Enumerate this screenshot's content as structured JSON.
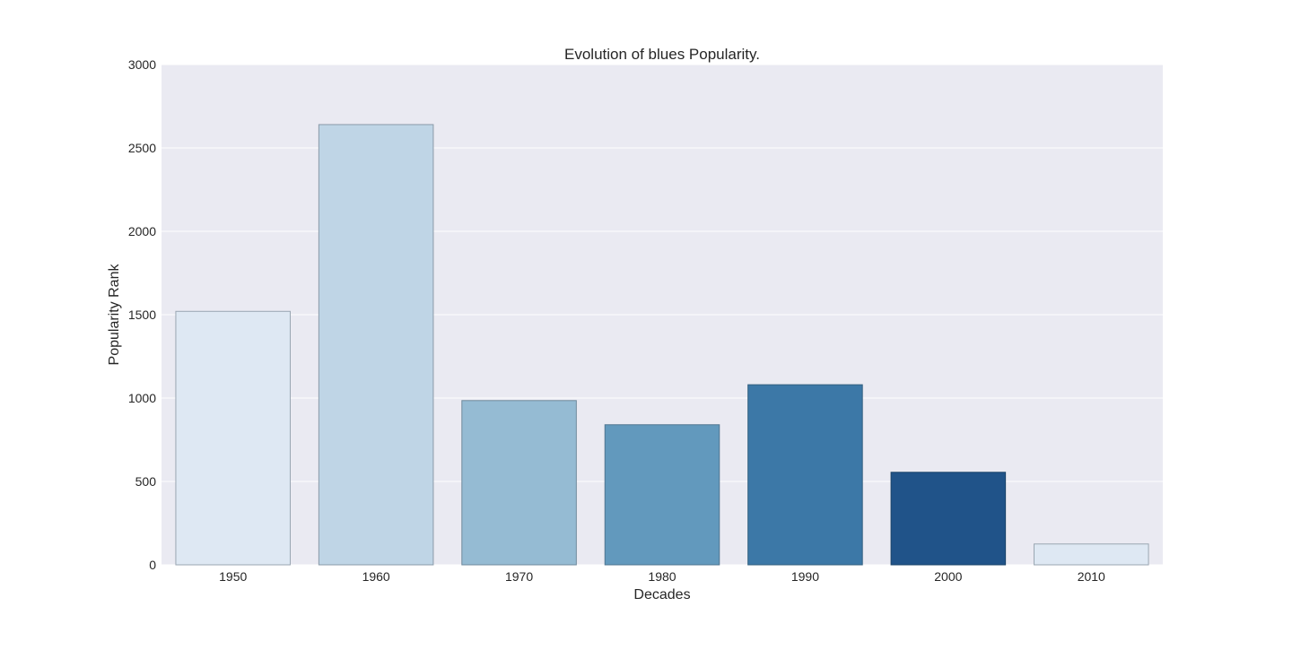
{
  "chart_data": {
    "type": "bar",
    "title": "Evolution of blues Popularity.",
    "xlabel": "Decades",
    "ylabel": "Popularity Rank",
    "categories": [
      "1950",
      "1960",
      "1970",
      "1980",
      "1990",
      "2000",
      "2010"
    ],
    "values": [
      1520,
      2640,
      985,
      840,
      1080,
      555,
      125
    ],
    "ylim": [
      0,
      3000
    ],
    "yticks": [
      "0",
      "500",
      "1000",
      "1500",
      "2000",
      "2500",
      "3000"
    ],
    "grid": true,
    "legend": "none",
    "colors": {
      "background": "#eaeaf2",
      "grid": "#ffffff",
      "bars": [
        "#dee8f3",
        "#bfd5e6",
        "#95bbd3",
        "#6299bd",
        "#3c78a7",
        "#205389",
        "#dee8f3"
      ],
      "bar_edges": [
        "#9aa6b2",
        "#8a9aa8",
        "#6f8a9c",
        "#4f7590",
        "#33607f",
        "#1b4469",
        "#9aa6b2"
      ]
    }
  }
}
